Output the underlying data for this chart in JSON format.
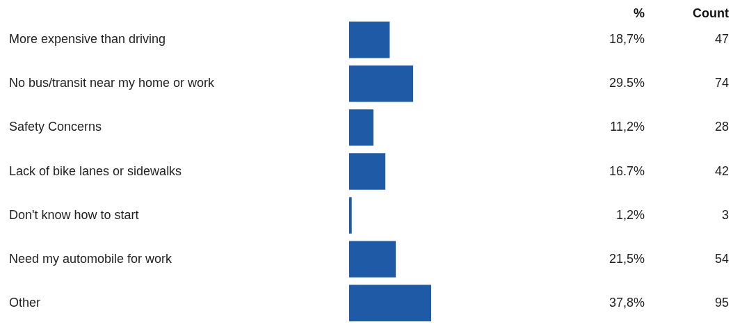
{
  "chart_data": {
    "type": "bar",
    "orientation": "horizontal",
    "categories": [
      "More expensive than driving",
      "No bus/transit near my home or work",
      "Safety Concerns",
      "Lack of bike lanes or sidewalks",
      "Don't know how to start",
      "Need my automobile for work",
      "Other"
    ],
    "values": [
      18.7,
      29.5,
      11.2,
      16.7,
      1.2,
      21.5,
      37.8
    ],
    "color": "#1f5aa6",
    "value_labels": [
      "18,7%",
      "29.5%",
      "11,2%",
      "16.7%",
      "1,2%",
      "21,5%",
      "37,8%"
    ],
    "annotations": [
      {
        "text": "%"
      },
      {
        "text": "Count"
      },
      "47",
      "74",
      "28",
      "42",
      "3",
      "54",
      "95"
    ]
  }
}
